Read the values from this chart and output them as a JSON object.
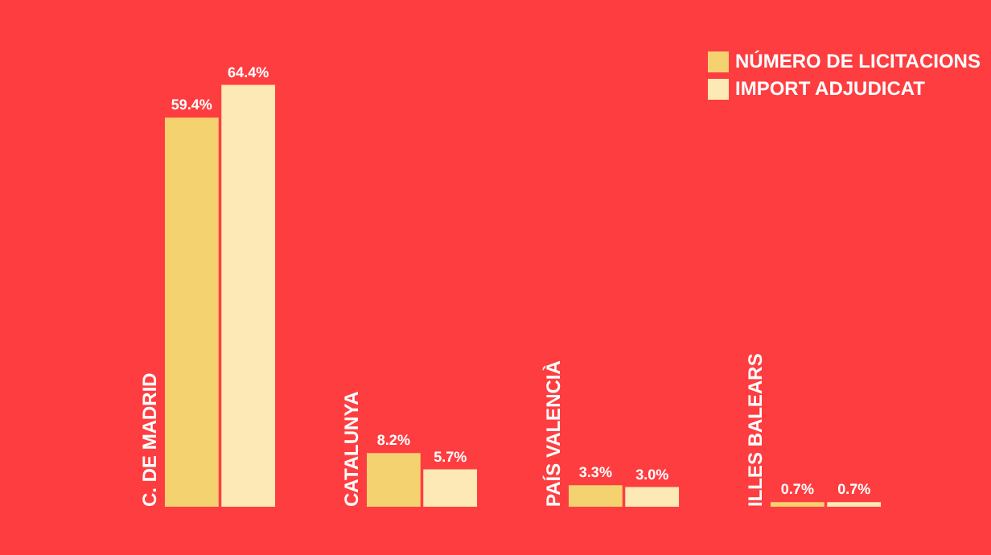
{
  "chart_data": {
    "type": "bar",
    "categories": [
      "C. DE MADRID",
      "CATALUNYA",
      "PAÍS VALENCIÀ",
      "ILLES BALEARS"
    ],
    "series": [
      {
        "name": "NÚMERO DE LICITACIONS",
        "color": "#f5d270",
        "values": [
          59.4,
          8.2,
          3.3,
          0.7
        ],
        "value_labels": [
          "59.4%",
          "8.2%",
          "3.3%",
          "0.7%"
        ]
      },
      {
        "name": "IMPORT ADJUDICAT",
        "color": "#fde9b5",
        "values": [
          64.4,
          5.7,
          3.0,
          0.7
        ],
        "value_labels": [
          "64.4%",
          "5.7%",
          "3.0%",
          "0.7%"
        ]
      }
    ],
    "legend": "top right",
    "grid": false
  }
}
